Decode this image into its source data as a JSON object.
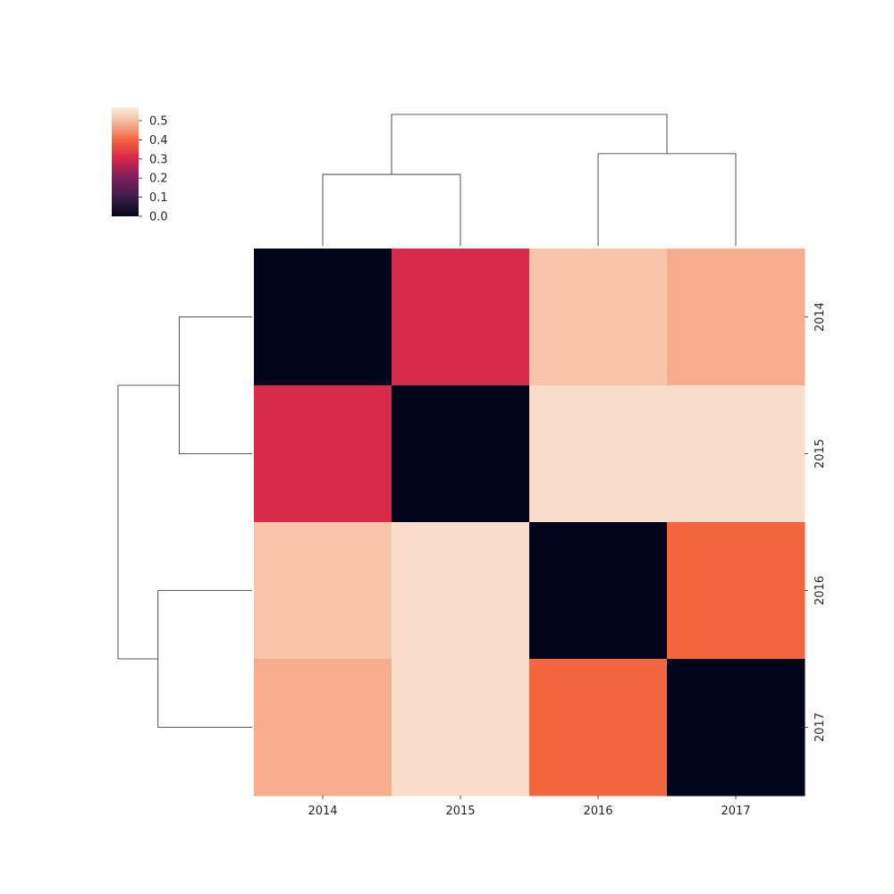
{
  "chart_data": {
    "type": "heatmap",
    "title": "",
    "xlabel": "",
    "ylabel": "",
    "x_categories": [
      "2014",
      "2015",
      "2016",
      "2017"
    ],
    "y_categories": [
      "2014",
      "2015",
      "2016",
      "2017"
    ],
    "values": [
      [
        0.0,
        0.31,
        0.51,
        0.48
      ],
      [
        0.31,
        0.0,
        0.55,
        0.55
      ],
      [
        0.51,
        0.55,
        0.0,
        0.4
      ],
      [
        0.48,
        0.55,
        0.4,
        0.0
      ]
    ],
    "colorbar": {
      "range": [
        0.0,
        0.57
      ],
      "ticks": [
        0.0,
        0.1,
        0.2,
        0.3,
        0.4,
        0.5
      ],
      "tick_labels": [
        "0.0",
        "0.1",
        "0.2",
        "0.3",
        "0.4",
        "0.5"
      ],
      "colormap": "rocket",
      "placement": "top-left"
    },
    "dendrogram": {
      "top": {
        "merges": [
          {
            "pair": [
              "2014",
              "2015"
            ],
            "height": 0.31
          },
          {
            "pair": [
              "2016",
              "2017"
            ],
            "height": 0.4
          },
          {
            "pair": [
              "2014-2015",
              "2016-2017"
            ],
            "height": 0.57
          }
        ]
      },
      "left": {
        "merges": [
          {
            "pair": [
              "2014",
              "2015"
            ],
            "height": 0.31
          },
          {
            "pair": [
              "2016",
              "2017"
            ],
            "height": 0.4
          },
          {
            "pair": [
              "2014-2015",
              "2016-2017"
            ],
            "height": 0.57
          }
        ]
      }
    },
    "grid": false,
    "x_tick_position": "bottom",
    "y_tick_position": "right"
  }
}
